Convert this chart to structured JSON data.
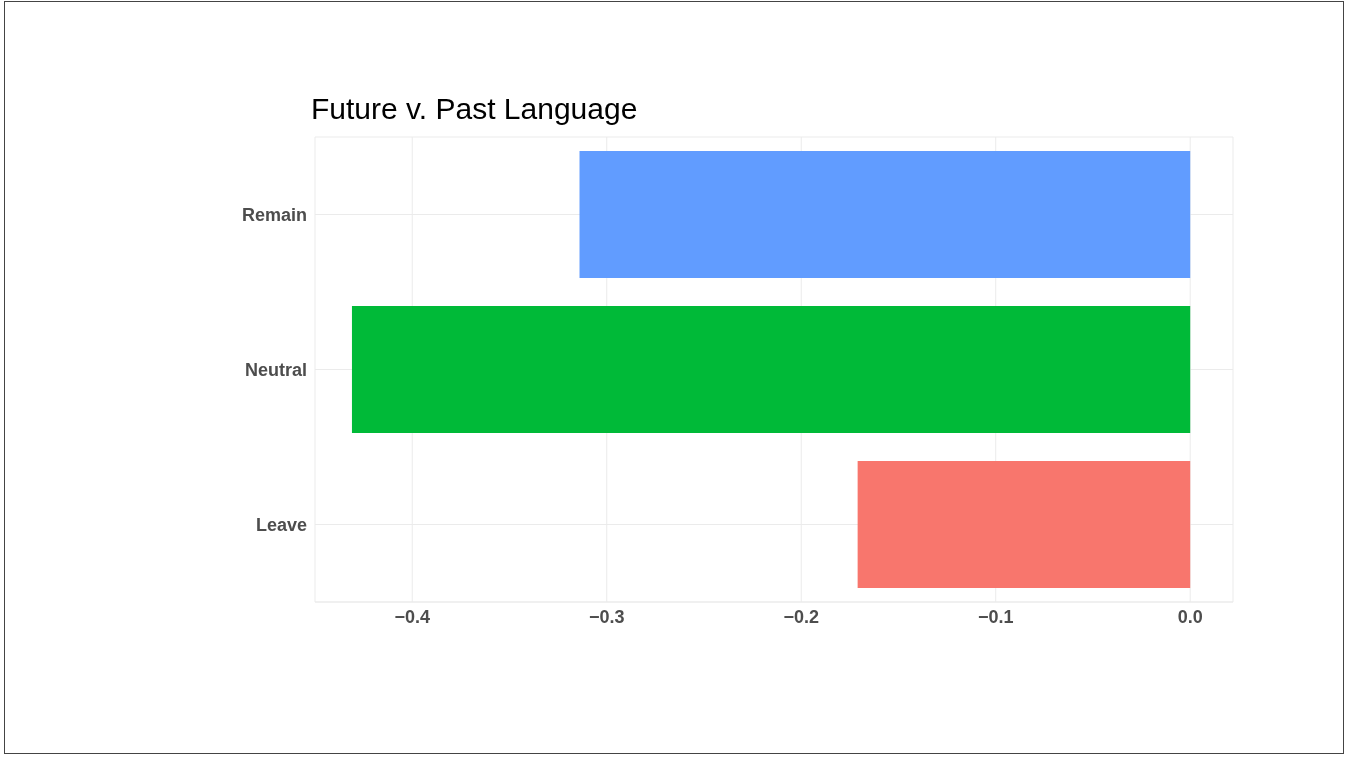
{
  "chart_data": {
    "type": "bar",
    "orientation": "horizontal",
    "title": "Future v. Past Language",
    "categories": [
      "Remain",
      "Neutral",
      "Leave"
    ],
    "values": [
      -0.314,
      -0.431,
      -0.171
    ],
    "colors": [
      "#619cff",
      "#00ba38",
      "#f8766d"
    ],
    "xlim": [
      -0.45,
      0.022
    ],
    "xticks": [
      {
        "value": -0.4,
        "label": "−0.4"
      },
      {
        "value": -0.3,
        "label": "−0.3"
      },
      {
        "value": -0.2,
        "label": "−0.2"
      },
      {
        "value": -0.1,
        "label": "−0.1"
      },
      {
        "value": 0,
        "label": "0.0"
      }
    ],
    "grid": true
  }
}
